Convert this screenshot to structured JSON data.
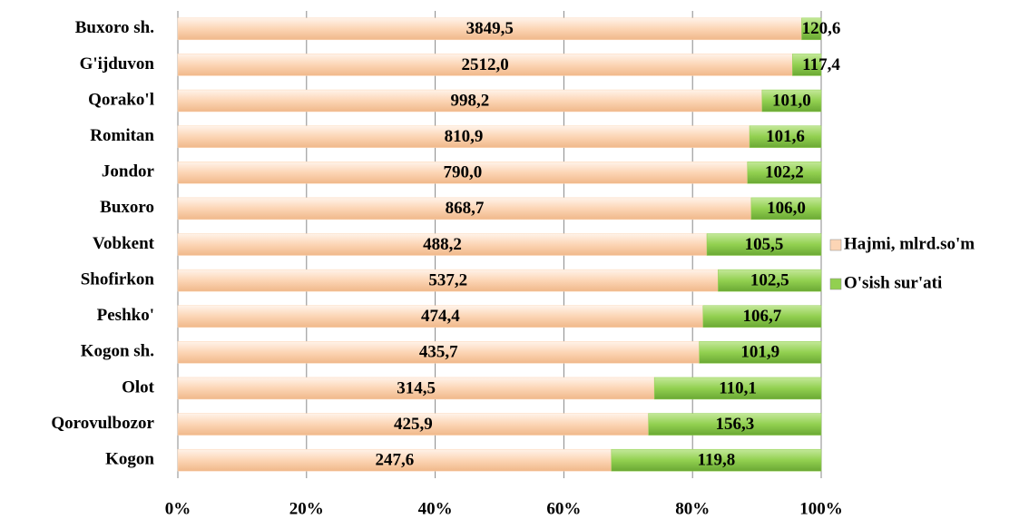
{
  "chart_data": {
    "type": "bar",
    "orientation": "horizontal",
    "stacked": "percent",
    "categories": [
      "Buxoro sh.",
      "G'ijduvon",
      "Qorako'l",
      "Romitan",
      "Jondor",
      "Buxoro",
      "Vobkent",
      "Shofirkon",
      "Peshko'",
      "Kogon sh.",
      "Olot",
      "Qorovulbozor",
      "Kogon"
    ],
    "series": [
      {
        "name": "Hajmi, mlrd.so'm",
        "color": "#fcd5b5",
        "values": [
          3849.5,
          2512.0,
          998.2,
          810.9,
          790.0,
          868.7,
          488.2,
          537.2,
          474.4,
          435.7,
          314.5,
          425.9,
          247.6
        ],
        "value_labels": [
          "3849,5",
          "2512,0",
          "998,2",
          "810,9",
          "790,0",
          "868,7",
          "488,2",
          "537,2",
          "474,4",
          "435,7",
          "314,5",
          "425,9",
          "247,6"
        ]
      },
      {
        "name": "O'sish sur'ati",
        "color": "#92d050",
        "values": [
          120.6,
          117.4,
          101.0,
          101.6,
          102.2,
          106.0,
          105.5,
          102.5,
          106.7,
          101.9,
          110.1,
          156.3,
          119.8
        ],
        "value_labels": [
          "120,6",
          "117,4",
          "101,0",
          "101,6",
          "102,2",
          "106,0",
          "105,5",
          "102,5",
          "106,7",
          "101,9",
          "110,1",
          "156,3",
          "119,8"
        ]
      }
    ],
    "xlim": [
      0,
      100
    ],
    "xticks": [
      {
        "value": 0,
        "label": "0%"
      },
      {
        "value": 20,
        "label": "20%"
      },
      {
        "value": 40,
        "label": "40%"
      },
      {
        "value": 60,
        "label": "60%"
      },
      {
        "value": 80,
        "label": "80%"
      },
      {
        "value": 100,
        "label": "100%"
      }
    ],
    "grid": true,
    "legend": "right"
  }
}
